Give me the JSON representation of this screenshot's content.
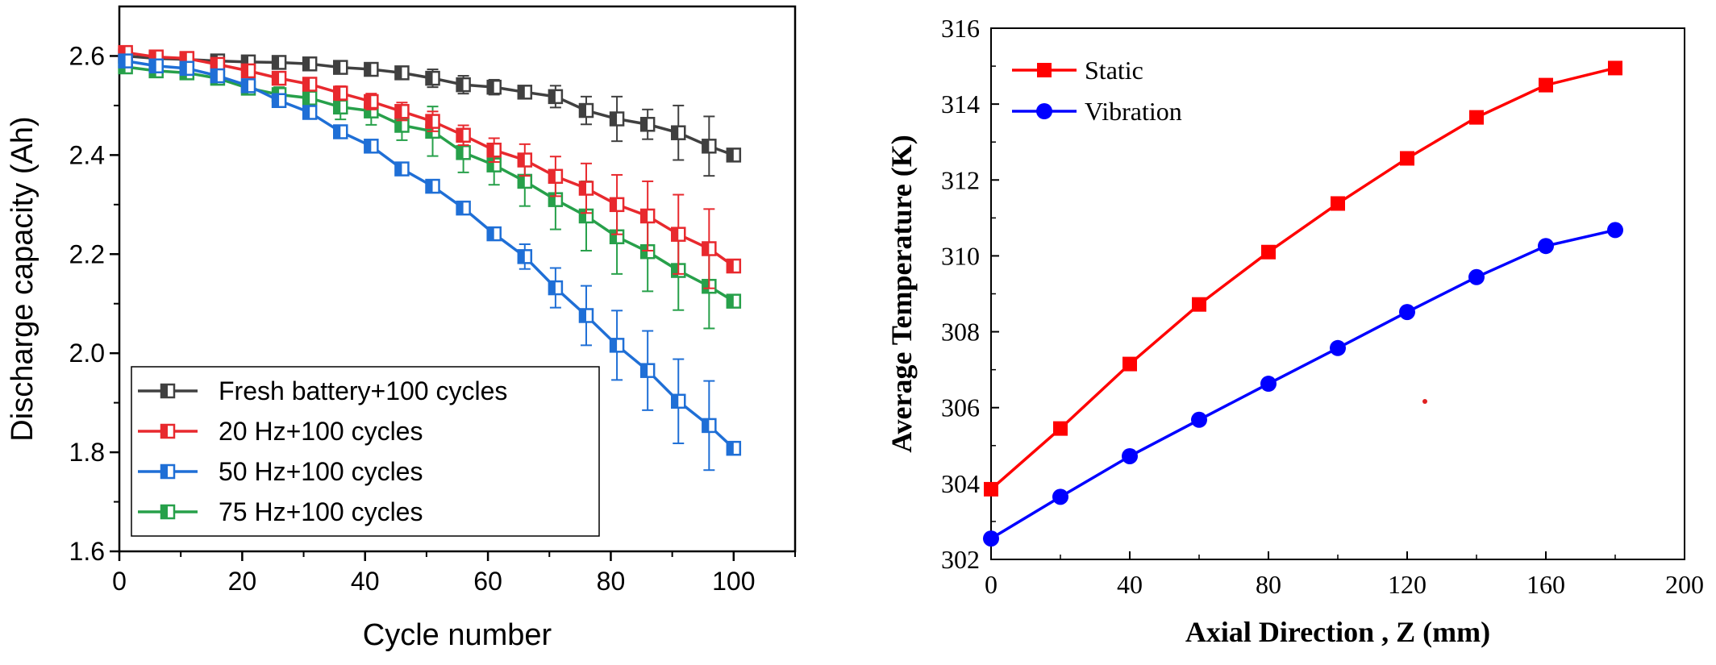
{
  "chart_data": [
    {
      "type": "line",
      "xlabel": "Cycle number",
      "ylabel": "Discharge capacity (Ah)",
      "xlim": [
        0,
        110
      ],
      "ylim": [
        1.6,
        2.7
      ],
      "xticks": [
        "0",
        "20",
        "40",
        "60",
        "80",
        "100"
      ],
      "yticks": [
        "1.6",
        "1.8",
        "2.0",
        "2.2",
        "2.4",
        "2.6"
      ],
      "grid": false,
      "legend_position": "bottom-left",
      "x": [
        1,
        6,
        11,
        16,
        21,
        26,
        31,
        36,
        41,
        46,
        51,
        56,
        61,
        66,
        71,
        76,
        81,
        86,
        91,
        96,
        100
      ],
      "series": [
        {
          "name": "Fresh battery+100 cycles",
          "color": "#404040",
          "values": [
            2.6,
            2.595,
            2.593,
            2.59,
            2.588,
            2.587,
            2.584,
            2.577,
            2.573,
            2.566,
            2.555,
            2.542,
            2.537,
            2.527,
            2.518,
            2.49,
            2.473,
            2.462,
            2.445,
            2.418,
            2.4
          ],
          "errors": [
            0.005,
            0.005,
            0.005,
            0.005,
            0.005,
            0.006,
            0.006,
            0.008,
            0.008,
            0.012,
            0.018,
            0.018,
            0.015,
            0.012,
            0.022,
            0.028,
            0.045,
            0.03,
            0.055,
            0.06,
            0.01
          ]
        },
        {
          "name": "20 Hz+100 cycles",
          "color": "#e8292e",
          "values": [
            2.607,
            2.598,
            2.595,
            2.583,
            2.57,
            2.555,
            2.543,
            2.525,
            2.508,
            2.488,
            2.468,
            2.44,
            2.41,
            2.39,
            2.357,
            2.333,
            2.3,
            2.277,
            2.24,
            2.211,
            2.176
          ],
          "errors": [
            0.005,
            0.005,
            0.005,
            0.005,
            0.008,
            0.01,
            0.012,
            0.014,
            0.016,
            0.018,
            0.02,
            0.02,
            0.024,
            0.032,
            0.04,
            0.05,
            0.06,
            0.07,
            0.08,
            0.08,
            0.01
          ]
        },
        {
          "name": "50 Hz+100 cycles",
          "color": "#1f6fd6",
          "values": [
            2.59,
            2.58,
            2.575,
            2.56,
            2.54,
            2.51,
            2.486,
            2.447,
            2.418,
            2.372,
            2.337,
            2.293,
            2.241,
            2.195,
            2.132,
            2.076,
            2.016,
            1.965,
            1.903,
            1.854,
            1.808
          ],
          "errors": [
            0.005,
            0.005,
            0.005,
            0.005,
            0.006,
            0.006,
            0.006,
            0.008,
            0.008,
            0.008,
            0.01,
            0.01,
            0.012,
            0.025,
            0.04,
            0.06,
            0.07,
            0.08,
            0.085,
            0.09,
            0.008
          ]
        },
        {
          "name": "75 Hz+100 cycles",
          "color": "#27a04a",
          "values": [
            2.578,
            2.57,
            2.566,
            2.555,
            2.535,
            2.522,
            2.515,
            2.497,
            2.489,
            2.46,
            2.448,
            2.405,
            2.38,
            2.347,
            2.31,
            2.277,
            2.235,
            2.205,
            2.167,
            2.135,
            2.105
          ],
          "errors": [
            0.005,
            0.005,
            0.005,
            0.006,
            0.01,
            0.015,
            0.02,
            0.025,
            0.028,
            0.03,
            0.05,
            0.04,
            0.04,
            0.05,
            0.06,
            0.07,
            0.075,
            0.08,
            0.08,
            0.085,
            0.01
          ]
        }
      ]
    },
    {
      "type": "line",
      "xlabel": "Axial Direction , Z (mm)",
      "ylabel": "Average Temperature (K)",
      "xlim": [
        0,
        200
      ],
      "ylim": [
        302,
        316
      ],
      "xticks": [
        "0",
        "40",
        "80",
        "120",
        "160",
        "200"
      ],
      "yticks": [
        "302",
        "304",
        "306",
        "308",
        "310",
        "312",
        "314",
        "316"
      ],
      "grid": false,
      "legend_position": "top-left",
      "x": [
        0,
        20,
        40,
        60,
        80,
        100,
        120,
        140,
        160,
        180
      ],
      "series": [
        {
          "name": "Static",
          "color": "#ff0000",
          "marker": "square",
          "values": [
            303.85,
            305.45,
            307.15,
            308.72,
            310.1,
            311.38,
            312.57,
            313.65,
            314.5,
            314.95
          ]
        },
        {
          "name": "Vibration",
          "color": "#0000ff",
          "marker": "circle",
          "values": [
            302.55,
            303.65,
            304.72,
            305.68,
            306.63,
            307.57,
            308.52,
            309.44,
            310.26,
            310.68
          ]
        }
      ]
    }
  ]
}
